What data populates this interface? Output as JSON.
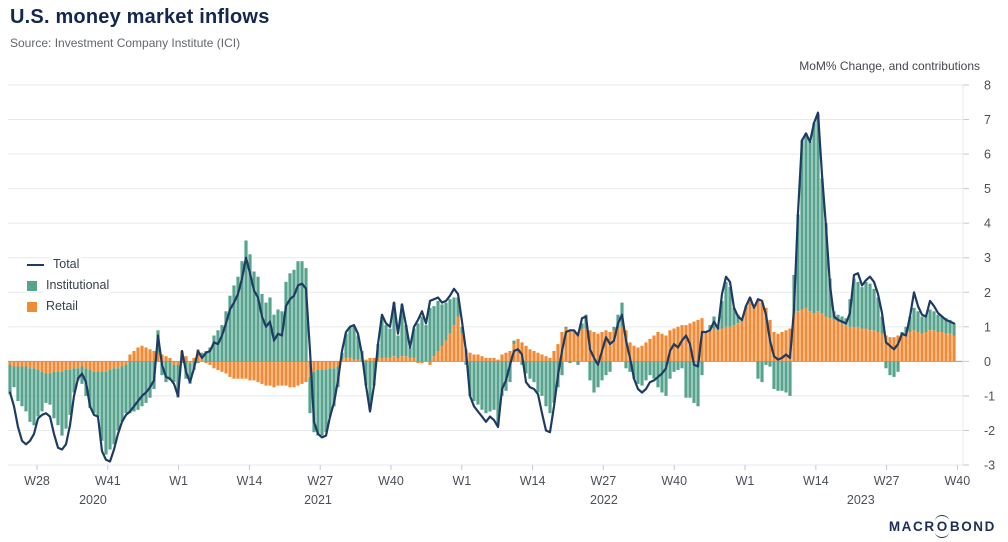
{
  "header": {
    "title": "U.S. money market inflows",
    "source": "Source: Investment Company Institute (ICI)"
  },
  "footer": {
    "logo_prefix": "MACR",
    "logo_o": "O",
    "logo_suffix": "BOND"
  },
  "chart_data": {
    "type": "combo-bar-line",
    "title": "U.S. money market inflows",
    "unit_label": "MoM% Change, and contributions",
    "frequency": "weekly",
    "ylim": [
      -3,
      8
    ],
    "grid": true,
    "legend_position": "left-middle",
    "y_ticks": [
      8,
      7,
      6,
      5,
      4,
      3,
      2,
      1,
      0,
      -1,
      -2,
      -3
    ],
    "x_ticks": [
      {
        "label": "W28",
        "pos": 0.0304
      },
      {
        "label": "W41",
        "pos": 0.1045
      },
      {
        "label": "W1",
        "pos": 0.1786
      },
      {
        "label": "W14",
        "pos": 0.2528
      },
      {
        "label": "W27",
        "pos": 0.3269
      },
      {
        "label": "W40",
        "pos": 0.401
      },
      {
        "label": "W1",
        "pos": 0.4752
      },
      {
        "label": "W14",
        "pos": 0.5493
      },
      {
        "label": "W27",
        "pos": 0.6234
      },
      {
        "label": "W40",
        "pos": 0.6976
      },
      {
        "label": "W1",
        "pos": 0.7717
      },
      {
        "label": "W14",
        "pos": 0.8459
      },
      {
        "label": "W27",
        "pos": 0.92
      },
      {
        "label": "W40",
        "pos": 0.9941
      }
    ],
    "year_labels": [
      {
        "label": "2020",
        "pos": 0.089
      },
      {
        "label": "2021",
        "pos": 0.3246
      },
      {
        "label": "2022",
        "pos": 0.624
      },
      {
        "label": "2023",
        "pos": 0.893
      }
    ],
    "colors": {
      "grid": "#e9eaec",
      "zero_line": "#9b9ea3",
      "tick": "#c4c7cc",
      "axis_text": "#4b5058",
      "total": "#1e3c63",
      "institutional": "#57a48e",
      "retail": "#f18a34"
    },
    "series": [
      {
        "name": "Total",
        "type": "line",
        "color": "#1e3c63",
        "values": [
          -0.9,
          -1.3,
          -1.9,
          -2.3,
          -2.4,
          -2.3,
          -2.1,
          -1.65,
          -1.55,
          -1.5,
          -1.6,
          -2.1,
          -2.5,
          -2.55,
          -2.4,
          -1.85,
          -1.0,
          -0.5,
          -0.35,
          -0.6,
          -1.3,
          -1.55,
          -1.6,
          -2.6,
          -2.85,
          -2.9,
          -2.55,
          -2.1,
          -1.75,
          -1.55,
          -1.45,
          -1.3,
          -1.15,
          -1.0,
          -0.9,
          -0.75,
          -0.55,
          0.75,
          -0.1,
          -0.45,
          -0.5,
          -0.65,
          -1.0,
          0.3,
          -0.3,
          -0.6,
          -0.2,
          0.3,
          0.1,
          0.25,
          0.3,
          0.55,
          0.5,
          0.75,
          1.1,
          1.5,
          1.7,
          1.95,
          2.4,
          3.0,
          2.55,
          2.05,
          1.85,
          1.3,
          1.0,
          1.15,
          0.6,
          0.8,
          0.75,
          1.6,
          1.8,
          1.9,
          2.2,
          2.25,
          2.1,
          0.3,
          -1.75,
          -2.1,
          -2.2,
          -2.15,
          -1.6,
          -1.2,
          -0.55,
          0.3,
          0.85,
          1.0,
          1.05,
          0.8,
          0.2,
          -0.7,
          -1.45,
          -0.7,
          0.5,
          1.35,
          1.1,
          1.0,
          1.7,
          0.8,
          1.65,
          1.05,
          0.4,
          1.0,
          1.2,
          1.45,
          1.1,
          1.75,
          1.8,
          1.85,
          1.7,
          1.75,
          1.9,
          2.1,
          1.95,
          1.15,
          0.3,
          -1.0,
          -1.3,
          -1.45,
          -1.6,
          -1.75,
          -1.6,
          -1.7,
          -1.9,
          -0.8,
          -0.55,
          -0.1,
          0.3,
          0.35,
          0.2,
          -0.6,
          -0.75,
          -0.8,
          -0.95,
          -1.5,
          -2.0,
          -2.05,
          -1.3,
          -0.4,
          0.3,
          0.85,
          0.9,
          0.9,
          0.75,
          1.25,
          1.3,
          0.35,
          0.1,
          -0.1,
          0.3,
          0.7,
          0.5,
          0.6,
          1.1,
          1.35,
          0.6,
          0.1,
          -0.5,
          -0.8,
          -0.9,
          -0.8,
          -0.6,
          -0.55,
          -0.45,
          -0.35,
          -0.2,
          0.3,
          0.5,
          0.4,
          0.6,
          0.75,
          0.5,
          -0.1,
          -0.15,
          0.85,
          0.85,
          0.9,
          1.15,
          0.95,
          1.95,
          2.45,
          2.3,
          1.55,
          1.3,
          1.2,
          1.6,
          1.85,
          1.55,
          1.8,
          1.75,
          1.35,
          0.6,
          0.15,
          0.05,
          0.1,
          0.2,
          0.1,
          1.5,
          4.3,
          6.4,
          6.6,
          6.35,
          6.9,
          7.2,
          5.4,
          3.9,
          2.2,
          1.3,
          1.2,
          1.15,
          1.1,
          1.4,
          2.5,
          2.55,
          2.2,
          2.35,
          2.45,
          2.3,
          1.95,
          1.4,
          0.55,
          0.45,
          0.35,
          0.5,
          0.8,
          0.75,
          1.3,
          2.0,
          1.6,
          1.35,
          1.3,
          1.75,
          1.6,
          1.4,
          1.3,
          1.2,
          1.15,
          1.1
        ]
      },
      {
        "name": "Institutional",
        "type": "bar",
        "color": "#57a48e",
        "values": [
          -0.85,
          -0.6,
          -1.0,
          -1.15,
          -1.3,
          -1.55,
          -1.65,
          -1.35,
          -1.15,
          -0.85,
          -0.9,
          -1.35,
          -1.55,
          -1.85,
          -1.7,
          -1.3,
          -0.7,
          -0.35,
          -0.5,
          -0.8,
          -1.1,
          -1.2,
          -1.3,
          -2.0,
          -2.4,
          -2.3,
          -2.2,
          -1.8,
          -1.6,
          -1.4,
          -1.5,
          -1.45,
          -1.4,
          -1.3,
          -1.2,
          -1.05,
          -0.8,
          0.65,
          -0.4,
          -0.6,
          -0.55,
          -0.5,
          -0.95,
          -0.05,
          -0.5,
          -0.6,
          -0.25,
          -0.05,
          0.15,
          0.3,
          0.4,
          0.75,
          0.9,
          1.05,
          1.45,
          1.9,
          2.2,
          2.45,
          2.9,
          3.5,
          3.1,
          2.6,
          2.45,
          1.95,
          1.7,
          1.85,
          1.35,
          1.5,
          1.45,
          2.3,
          2.55,
          2.65,
          2.9,
          2.9,
          2.7,
          -1.05,
          -1.75,
          -1.9,
          -1.9,
          -1.8,
          -1.4,
          -1.1,
          -0.6,
          0.2,
          0.7,
          0.9,
          0.95,
          0.7,
          0.3,
          -0.7,
          -1.4,
          -0.7,
          0.4,
          1.2,
          0.95,
          0.85,
          1.55,
          0.65,
          1.5,
          0.9,
          0.3,
          0.85,
          1.1,
          1.3,
          1.05,
          1.55,
          1.45,
          1.45,
          1.2,
          1.1,
          1.0,
          0.8,
          0.55,
          0.2,
          -0.1,
          -1.0,
          -1.15,
          -1.25,
          -1.4,
          -1.5,
          -1.45,
          -1.4,
          -1.85,
          -1.0,
          -0.85,
          -0.6,
          0.1,
          0.0,
          -0.1,
          -0.35,
          -0.5,
          -0.6,
          -0.9,
          -1.0,
          -1.3,
          -1.5,
          -1.2,
          -0.75,
          -0.4,
          0.05,
          -0.05,
          0.0,
          -0.1,
          0.15,
          0.4,
          -0.55,
          -0.9,
          -0.75,
          -0.55,
          -0.4,
          -0.3,
          0.1,
          0.4,
          0.7,
          -0.2,
          -0.3,
          -0.5,
          -0.65,
          -0.7,
          -0.55,
          -0.4,
          -0.5,
          -0.75,
          -0.9,
          -1.0,
          -0.5,
          -0.3,
          -0.25,
          -0.2,
          -1.05,
          -1.05,
          -1.2,
          -1.3,
          -0.4,
          0.0,
          0.15,
          0.35,
          0.1,
          0.8,
          1.3,
          1.15,
          0.5,
          0.25,
          0.1,
          0.1,
          0.1,
          0.0,
          -0.5,
          -0.6,
          -0.1,
          -0.15,
          -0.8,
          -0.85,
          -0.85,
          -0.9,
          -1.0,
          1.1,
          2.8,
          4.9,
          5.05,
          4.9,
          5.5,
          5.7,
          3.9,
          2.7,
          1.15,
          0.25,
          0.2,
          0.2,
          0.2,
          0.8,
          1.4,
          1.3,
          1.2,
          1.35,
          1.35,
          1.2,
          1.0,
          0.5,
          -0.2,
          -0.4,
          -0.45,
          -0.3,
          0.1,
          0.2,
          0.45,
          0.65,
          0.6,
          0.5,
          0.5,
          0.6,
          0.55,
          0.5,
          0.45,
          0.45,
          0.4,
          0.35
        ]
      },
      {
        "name": "Retail",
        "type": "bar",
        "color": "#f18a34",
        "values": [
          -0.1,
          -0.15,
          -0.15,
          -0.15,
          -0.15,
          -0.2,
          -0.2,
          -0.25,
          -0.3,
          -0.35,
          -0.35,
          -0.3,
          -0.3,
          -0.3,
          -0.25,
          -0.25,
          -0.2,
          -0.2,
          -0.15,
          -0.2,
          -0.25,
          -0.3,
          -0.3,
          -0.3,
          -0.3,
          -0.25,
          -0.2,
          -0.2,
          -0.15,
          -0.1,
          0.2,
          0.3,
          0.4,
          0.45,
          0.4,
          0.35,
          0.3,
          0.25,
          0.2,
          0.15,
          0.1,
          -0.1,
          -0.1,
          0.3,
          0.15,
          -0.05,
          0.1,
          0.35,
          0.1,
          -0.05,
          -0.1,
          -0.2,
          -0.25,
          -0.3,
          -0.35,
          -0.45,
          -0.5,
          -0.5,
          -0.5,
          -0.5,
          -0.55,
          -0.55,
          -0.6,
          -0.65,
          -0.7,
          -0.7,
          -0.75,
          -0.7,
          -0.7,
          -0.7,
          -0.75,
          -0.75,
          -0.7,
          -0.65,
          -0.6,
          -0.45,
          -0.3,
          -0.25,
          -0.25,
          -0.25,
          -0.2,
          -0.2,
          -0.15,
          0.05,
          0.1,
          0.1,
          0.05,
          0.05,
          0.0,
          0.05,
          0.1,
          0.1,
          0.1,
          0.1,
          0.1,
          0.1,
          0.15,
          0.1,
          0.15,
          0.15,
          0.1,
          0.1,
          -0.05,
          -0.05,
          0.0,
          -0.1,
          0.15,
          0.3,
          0.45,
          0.6,
          0.8,
          1.05,
          1.3,
          0.8,
          0.35,
          0.25,
          0.2,
          0.2,
          0.15,
          0.1,
          0.1,
          0.1,
          0.05,
          0.2,
          0.25,
          0.3,
          0.5,
          0.65,
          0.55,
          0.45,
          0.35,
          0.3,
          0.25,
          0.2,
          0.15,
          0.1,
          0.3,
          0.5,
          0.85,
          0.95,
          0.9,
          0.9,
          0.85,
          0.95,
          0.95,
          0.9,
          0.85,
          0.8,
          0.85,
          0.9,
          0.85,
          0.9,
          0.95,
          1.0,
          0.9,
          0.55,
          0.45,
          0.4,
          0.45,
          0.55,
          0.65,
          0.75,
          0.85,
          0.8,
          0.75,
          0.9,
          0.95,
          1.0,
          1.05,
          1.05,
          1.1,
          1.15,
          1.2,
          1.25,
          0.85,
          0.9,
          0.95,
          0.9,
          0.95,
          1.0,
          1.0,
          1.05,
          1.1,
          1.15,
          1.5,
          1.75,
          1.65,
          1.75,
          1.7,
          1.55,
          1.2,
          0.85,
          0.8,
          0.85,
          0.9,
          0.95,
          1.4,
          1.45,
          1.5,
          1.55,
          1.45,
          1.4,
          1.45,
          1.4,
          1.3,
          1.25,
          1.2,
          1.15,
          1.1,
          1.05,
          1.0,
          1.0,
          1.0,
          0.95,
          0.95,
          0.9,
          0.9,
          0.85,
          0.8,
          0.75,
          0.7,
          0.7,
          0.75,
          0.75,
          0.8,
          0.85,
          0.9,
          0.85,
          0.8,
          0.85,
          0.9,
          0.9,
          0.85,
          0.85,
          0.8,
          0.8,
          0.75
        ]
      }
    ]
  }
}
